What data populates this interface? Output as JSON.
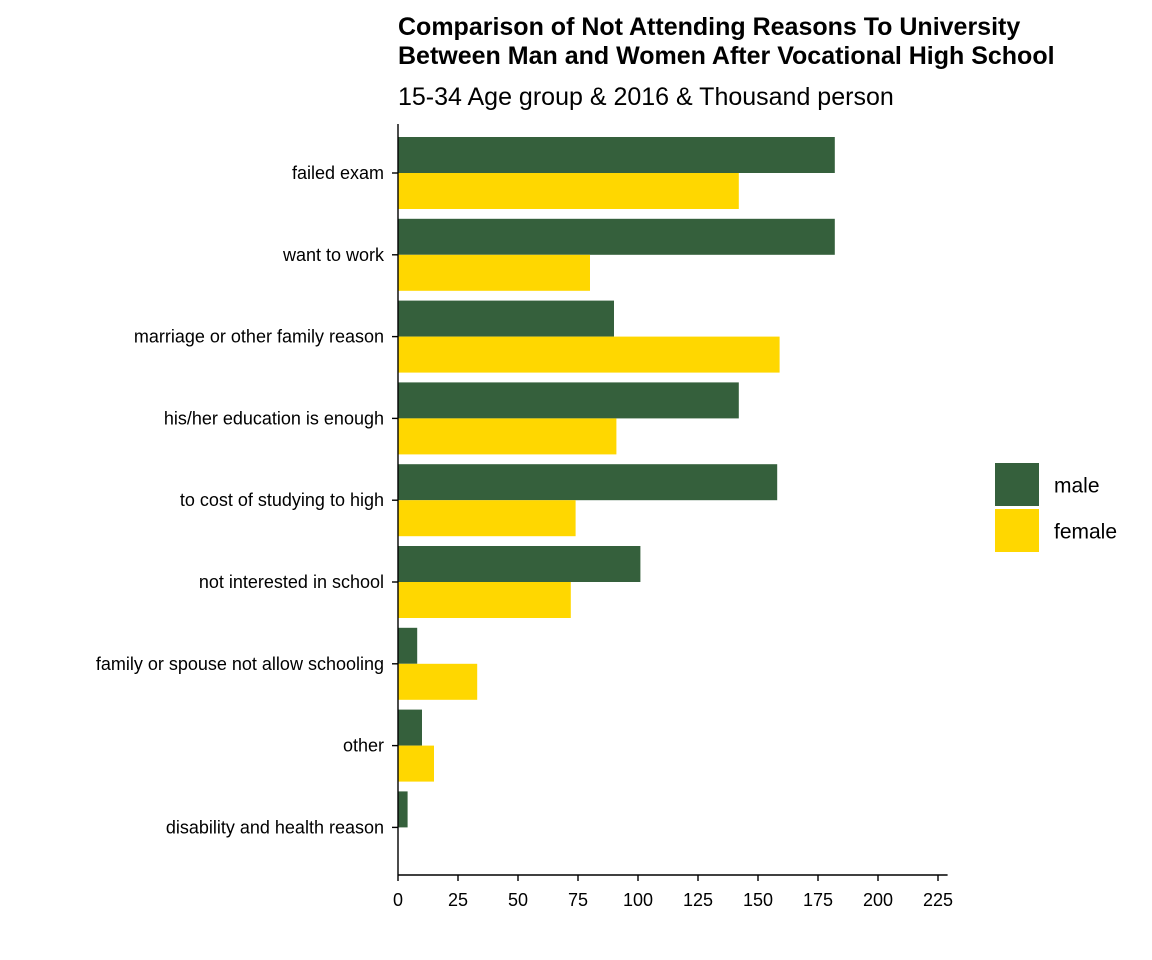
{
  "chart_data": {
    "type": "bar",
    "orientation": "horizontal",
    "title_line1": "Comparison of Not Attending Reasons To University",
    "title_line2": "Between Man and Women After Vocational High School",
    "subtitle": "15-34 Age group & 2016 & Thousand person",
    "xlabel": "",
    "ylabel": "",
    "xlim": [
      0,
      229
    ],
    "x_ticks": [
      0,
      25,
      50,
      75,
      100,
      125,
      150,
      175,
      200,
      225
    ],
    "categories": [
      "failed exam",
      "want to work",
      "marriage or other family reason",
      "his/her education is enough",
      "to cost of studying to high",
      "not interested in school",
      "family or spouse not allow schooling",
      "other",
      "disability and health reason"
    ],
    "series": [
      {
        "name": "male",
        "color": "#35603C",
        "values": [
          182,
          182,
          90,
          142,
          158,
          101,
          8,
          10,
          4
        ]
      },
      {
        "name": "female",
        "color": "#FFD700",
        "values": [
          142,
          80,
          159,
          91,
          74,
          72,
          33,
          15,
          0
        ]
      }
    ],
    "grid": false,
    "legend": "right"
  }
}
